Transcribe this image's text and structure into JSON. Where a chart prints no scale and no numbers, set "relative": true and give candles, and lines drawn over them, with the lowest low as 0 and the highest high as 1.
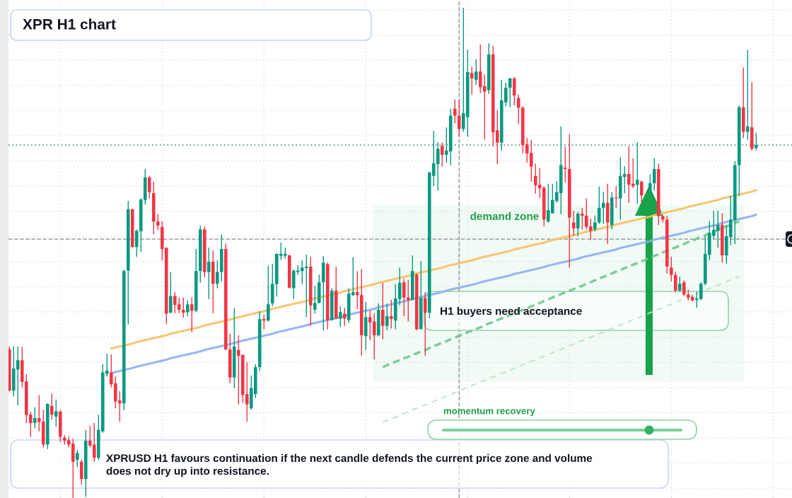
{
  "chart_data": {
    "type": "candlestick",
    "title": "XPR H1 chart",
    "relative": true,
    "grid": true,
    "categories": [
      null,
      null,
      null,
      null,
      null,
      null,
      null,
      null,
      null,
      null,
      null,
      null,
      null,
      null,
      null,
      null,
      null,
      null,
      null,
      null,
      null,
      null,
      null,
      null,
      null,
      null,
      null,
      null,
      null,
      null,
      null,
      null,
      null,
      null,
      null,
      null,
      null,
      null,
      null,
      null,
      null,
      null,
      null,
      null,
      null,
      null,
      null,
      null,
      null,
      null,
      null,
      null,
      null,
      null,
      null,
      null,
      null,
      null,
      null,
      null,
      null,
      null,
      null,
      null,
      null,
      null,
      null,
      null,
      null,
      null,
      null,
      null,
      null,
      null,
      null,
      null,
      null,
      null,
      null,
      null,
      null,
      null,
      null,
      null,
      null,
      null,
      null,
      null,
      null,
      null,
      null,
      null,
      null,
      null,
      null,
      null,
      null,
      null,
      null,
      null,
      null,
      null,
      null,
      null,
      null,
      null,
      null,
      null,
      null,
      null,
      null,
      null,
      null,
      null,
      null,
      null,
      null,
      null,
      null,
      null,
      null,
      null,
      null,
      null,
      null,
      null,
      null,
      null,
      null,
      null,
      null,
      null,
      null,
      null,
      null,
      null,
      null,
      null,
      null,
      null,
      null,
      null,
      null,
      null,
      null,
      null,
      null,
      null,
      null,
      null,
      null,
      null,
      null,
      null,
      null,
      null,
      null,
      null,
      null,
      null,
      null,
      null,
      null,
      null,
      null,
      null,
      null,
      null,
      null,
      null,
      null,
      null,
      null,
      null,
      null,
      null,
      null
    ],
    "ohlc": [
      [
        0.303,
        0.309,
        0.218,
        0.219
      ],
      [
        0.219,
        0.309,
        0.207,
        0.264
      ],
      [
        0.262,
        0.309,
        0.189,
        0.281
      ],
      [
        0.281,
        0.308,
        0.226,
        0.237
      ],
      [
        0.238,
        0.253,
        0.153,
        0.169
      ],
      [
        0.17,
        0.176,
        0.125,
        0.153
      ],
      [
        0.153,
        0.185,
        0.142,
        0.163
      ],
      [
        0.163,
        0.21,
        0.136,
        0.155
      ],
      [
        0.156,
        0.18,
        0.103,
        0.109
      ],
      [
        0.109,
        0.193,
        0.1,
        0.192
      ],
      [
        0.188,
        0.213,
        0.16,
        0.17
      ],
      [
        0.166,
        0.201,
        0.145,
        0.177
      ],
      [
        0.176,
        0.179,
        0.114,
        0.125
      ],
      [
        0.123,
        0.128,
        0.109,
        0.117
      ],
      [
        0.118,
        0.126,
        0.103,
        0.109
      ],
      [
        0.111,
        0.121,
        0.0,
        0.074
      ],
      [
        0.078,
        0.098,
        0.063,
        0.092
      ],
      [
        0.074,
        0.078,
        0.027,
        0.039
      ],
      [
        0.039,
        0.139,
        0.002,
        0.117
      ],
      [
        0.117,
        0.147,
        0.103,
        0.107
      ],
      [
        0.109,
        0.153,
        0.074,
        0.082
      ],
      [
        0.082,
        0.17,
        0.078,
        0.139
      ],
      [
        0.136,
        0.273,
        0.133,
        0.256
      ],
      [
        0.253,
        0.294,
        0.248,
        0.26
      ],
      [
        0.256,
        0.293,
        0.226,
        0.232
      ],
      [
        0.234,
        0.248,
        0.183,
        0.197
      ],
      [
        0.199,
        0.218,
        0.156,
        0.193
      ],
      [
        0.193,
        0.466,
        0.179,
        0.463
      ],
      [
        0.464,
        0.606,
        0.354,
        0.589
      ],
      [
        0.589,
        0.59,
        0.511,
        0.512
      ],
      [
        0.512,
        0.548,
        0.492,
        0.545
      ],
      [
        0.544,
        0.611,
        0.502,
        0.609
      ],
      [
        0.608,
        0.671,
        0.599,
        0.654
      ],
      [
        0.654,
        0.657,
        0.611,
        0.624
      ],
      [
        0.622,
        0.645,
        0.538,
        0.564
      ],
      [
        0.564,
        0.579,
        0.547,
        0.556
      ],
      [
        0.553,
        0.565,
        0.485,
        0.508
      ],
      [
        0.51,
        0.512,
        0.355,
        0.376
      ],
      [
        0.378,
        0.461,
        0.377,
        0.412
      ],
      [
        0.412,
        0.42,
        0.377,
        0.394
      ],
      [
        0.395,
        0.409,
        0.377,
        0.384
      ],
      [
        0.384,
        0.409,
        0.368,
        0.378
      ],
      [
        0.379,
        0.403,
        0.371,
        0.395
      ],
      [
        0.395,
        0.409,
        0.338,
        0.382
      ],
      [
        0.382,
        0.508,
        0.379,
        0.463
      ],
      [
        0.463,
        0.556,
        0.439,
        0.548
      ],
      [
        0.548,
        0.554,
        0.45,
        0.461
      ],
      [
        0.461,
        0.511,
        0.406,
        0.482
      ],
      [
        0.482,
        0.505,
        0.377,
        0.437
      ],
      [
        0.437,
        0.485,
        0.428,
        0.461
      ],
      [
        0.461,
        0.538,
        0.442,
        0.508
      ],
      [
        0.508,
        0.519,
        0.302,
        0.303
      ],
      [
        0.303,
        0.335,
        0.234,
        0.246
      ],
      [
        0.246,
        0.387,
        0.224,
        0.309
      ],
      [
        0.302,
        0.332,
        0.191,
        0.29
      ],
      [
        0.292,
        0.293,
        0.194,
        0.21
      ],
      [
        0.212,
        0.277,
        0.156,
        0.191
      ],
      [
        0.183,
        0.25,
        0.18,
        0.224
      ],
      [
        0.212,
        0.273,
        0.204,
        0.267
      ],
      [
        0.267,
        0.381,
        0.259,
        0.365
      ],
      [
        0.365,
        0.374,
        0.344,
        0.362
      ],
      [
        0.362,
        0.474,
        0.36,
        0.395
      ],
      [
        0.397,
        0.478,
        0.391,
        0.437
      ],
      [
        0.436,
        0.499,
        0.411,
        0.498
      ],
      [
        0.494,
        0.521,
        0.486,
        0.498
      ],
      [
        0.494,
        0.511,
        0.488,
        0.498
      ],
      [
        0.495,
        0.496,
        0.427,
        0.429
      ],
      [
        0.428,
        0.466,
        0.406,
        0.464
      ],
      [
        0.461,
        0.475,
        0.455,
        0.464
      ],
      [
        0.463,
        0.485,
        0.436,
        0.47
      ],
      [
        0.469,
        0.496,
        0.369,
        0.472
      ],
      [
        0.472,
        0.492,
        0.351,
        0.393
      ],
      [
        0.384,
        0.433,
        0.376,
        0.398
      ],
      [
        0.398,
        0.456,
        0.397,
        0.44
      ],
      [
        0.44,
        0.494,
        0.342,
        0.48
      ],
      [
        0.477,
        0.48,
        0.344,
        0.363
      ],
      [
        0.363,
        0.428,
        0.362,
        0.423
      ],
      [
        0.423,
        0.472,
        0.365,
        0.366
      ],
      [
        0.366,
        0.391,
        0.349,
        0.379
      ],
      [
        0.376,
        0.388,
        0.351,
        0.366
      ],
      [
        0.363,
        0.428,
        0.357,
        0.417
      ],
      [
        0.414,
        0.491,
        0.412,
        0.42
      ],
      [
        0.42,
        0.463,
        0.385,
        0.414
      ],
      [
        0.414,
        0.467,
        0.29,
        0.332
      ],
      [
        0.33,
        0.4,
        0.302,
        0.369
      ],
      [
        0.369,
        0.382,
        0.322,
        0.358
      ],
      [
        0.36,
        0.377,
        0.283,
        0.332
      ],
      [
        0.332,
        0.397,
        0.33,
        0.384
      ],
      [
        0.384,
        0.439,
        0.324,
        0.351
      ],
      [
        0.351,
        0.397,
        0.342,
        0.371
      ],
      [
        0.371,
        0.404,
        0.346,
        0.365
      ],
      [
        0.362,
        0.436,
        0.344,
        0.407
      ],
      [
        0.406,
        0.47,
        0.393,
        0.439
      ],
      [
        0.44,
        0.447,
        0.371,
        0.409
      ],
      [
        0.409,
        0.445,
        0.36,
        0.404
      ],
      [
        0.404,
        0.495,
        0.403,
        0.463
      ],
      [
        0.456,
        0.458,
        0.342,
        0.344
      ],
      [
        0.345,
        0.483,
        0.343,
        0.408
      ],
      [
        0.408,
        0.42,
        0.29,
        0.378
      ],
      [
        0.378,
        0.665,
        0.367,
        0.664
      ],
      [
        0.657,
        0.749,
        0.636,
        0.683
      ],
      [
        0.681,
        0.726,
        0.627,
        0.712
      ],
      [
        0.718,
        0.725,
        0.676,
        0.7
      ],
      [
        0.7,
        0.756,
        0.684,
        0.709
      ],
      [
        0.707,
        0.794,
        0.679,
        0.78
      ],
      [
        0.794,
        0.813,
        0.764,
        0.78
      ],
      [
        0.78,
        0.813,
        0.737,
        0.753
      ],
      [
        0.753,
        1.0,
        0.747,
        0.785
      ],
      [
        0.777,
        0.914,
        0.737,
        0.869
      ],
      [
        0.867,
        0.88,
        0.823,
        0.856
      ],
      [
        0.853,
        0.895,
        0.843,
        0.87
      ],
      [
        0.87,
        0.925,
        0.826,
        0.838
      ],
      [
        0.84,
        0.864,
        0.731,
        0.829
      ],
      [
        0.832,
        0.927,
        0.824,
        0.905
      ],
      [
        0.905,
        0.922,
        0.717,
        0.746
      ],
      [
        0.75,
        0.791,
        0.681,
        0.725
      ],
      [
        0.725,
        0.853,
        0.709,
        0.811
      ],
      [
        0.807,
        0.847,
        0.799,
        0.837
      ],
      [
        0.837,
        0.857,
        0.797,
        0.856
      ],
      [
        0.856,
        0.859,
        0.801,
        0.821
      ],
      [
        0.816,
        0.823,
        0.763,
        0.796
      ],
      [
        0.796,
        0.799,
        0.703,
        0.72
      ],
      [
        0.722,
        0.734,
        0.684,
        0.703
      ],
      [
        0.704,
        0.73,
        0.645,
        0.676
      ],
      [
        0.657,
        0.682,
        0.621,
        0.638
      ],
      [
        0.639,
        0.673,
        0.612,
        0.632
      ],
      [
        0.633,
        0.636,
        0.554,
        0.568
      ],
      [
        0.564,
        0.641,
        0.562,
        0.587
      ],
      [
        0.581,
        0.641,
        0.58,
        0.608
      ],
      [
        0.606,
        0.646,
        0.602,
        0.624
      ],
      [
        0.622,
        0.758,
        0.579,
        0.679
      ],
      [
        0.674,
        0.717,
        0.644,
        0.671
      ],
      [
        0.671,
        0.742,
        0.47,
        0.572
      ],
      [
        0.562,
        0.586,
        0.535,
        0.55
      ],
      [
        0.55,
        0.584,
        0.534,
        0.58
      ],
      [
        0.58,
        0.592,
        0.548,
        0.576
      ],
      [
        0.576,
        0.611,
        0.548,
        0.553
      ],
      [
        0.554,
        0.57,
        0.526,
        0.545
      ],
      [
        0.548,
        0.576,
        0.544,
        0.562
      ],
      [
        0.562,
        0.635,
        0.559,
        0.592
      ],
      [
        0.592,
        0.625,
        0.559,
        0.602
      ],
      [
        0.602,
        0.641,
        0.518,
        0.562
      ],
      [
        0.557,
        0.624,
        0.548,
        0.613
      ],
      [
        0.613,
        0.636,
        0.592,
        0.612
      ],
      [
        0.611,
        0.695,
        0.568,
        0.657
      ],
      [
        0.655,
        0.677,
        0.622,
        0.661
      ],
      [
        0.661,
        0.717,
        0.602,
        0.639
      ],
      [
        0.641,
        0.693,
        0.632,
        0.636
      ],
      [
        0.639,
        0.726,
        0.6,
        0.649
      ],
      [
        0.645,
        0.648,
        0.602,
        0.617
      ],
      null,
      [
        0.627,
        0.66,
        0.62,
        0.642
      ],
      [
        0.642,
        0.693,
        0.627,
        0.671
      ],
      [
        0.671,
        0.682,
        0.557,
        0.575
      ],
      [
        0.575,
        0.576,
        0.562,
        0.568
      ],
      [
        0.568,
        0.576,
        0.458,
        0.472
      ],
      [
        0.47,
        0.492,
        0.442,
        0.455
      ],
      [
        0.455,
        0.461,
        0.42,
        0.423
      ],
      [
        0.423,
        0.452,
        0.421,
        0.437
      ],
      [
        0.44,
        0.444,
        0.412,
        0.415
      ],
      [
        0.415,
        0.425,
        0.403,
        0.409
      ],
      [
        0.41,
        0.415,
        0.401,
        0.403
      ],
      [
        0.404,
        0.421,
        0.388,
        0.407
      ],
      [
        0.406,
        0.44,
        0.404,
        0.437
      ],
      [
        0.437,
        0.534,
        0.434,
        0.498
      ],
      [
        0.496,
        0.565,
        0.485,
        0.541
      ],
      [
        0.535,
        0.586,
        0.528,
        0.547
      ],
      [
        0.545,
        0.586,
        0.511,
        0.557
      ],
      [
        0.557,
        0.581,
        0.48,
        0.495
      ],
      [
        0.495,
        0.557,
        0.478,
        0.534
      ],
      [
        0.532,
        0.616,
        0.516,
        0.568
      ],
      [
        0.567,
        0.687,
        0.518,
        0.679
      ],
      [
        0.679,
        0.801,
        0.616,
        0.797
      ],
      [
        0.797,
        0.878,
        0.734,
        0.747
      ],
      [
        0.747,
        0.914,
        0.731,
        0.758
      ],
      [
        0.756,
        0.848,
        0.709,
        0.712
      ],
      [
        0.714,
        0.745,
        0.709,
        0.72
      ]
    ],
    "colors": [
      "#f23645",
      "#089981",
      "#089981",
      "#f23645",
      "#f23645",
      "#f23645",
      "#089981",
      "#f23645",
      "#f23645",
      "#089981",
      "#f23645",
      "#089981",
      "#f23645",
      "#f23645",
      "#f23645",
      "#f23645",
      "#089981",
      "#f23645",
      "#089981",
      "#f23645",
      "#f23645",
      "#089981",
      "#089981",
      "#089981",
      "#f23645",
      "#f23645",
      "#f23645",
      "#089981",
      "#089981",
      "#f23645",
      "#089981",
      "#089981",
      "#089981",
      "#f23645",
      "#f23645",
      "#f23645",
      "#f23645",
      "#f23645",
      "#089981",
      "#f23645",
      "#f23645",
      "#f23645",
      "#089981",
      "#f23645",
      "#089981",
      "#089981",
      "#f23645",
      "#089981",
      "#f23645",
      "#089981",
      "#089981",
      "#f23645",
      "#f23645",
      "#089981",
      "#f23645",
      "#f23645",
      "#f23645",
      "#089981",
      "#089981",
      "#089981",
      "#f23645",
      "#089981",
      "#089981",
      "#089981",
      "#089981",
      "#089981",
      "#f23645",
      "#089981",
      "#089981",
      "#089981",
      "#089981",
      "#f23645",
      "#089981",
      "#089981",
      "#089981",
      "#f23645",
      "#089981",
      "#f23645",
      "#089981",
      "#f23645",
      "#089981",
      "#089981",
      "#f23645",
      "#f23645",
      "#089981",
      "#f23645",
      "#f23645",
      "#089981",
      "#f23645",
      "#089981",
      "#f23645",
      "#089981",
      "#089981",
      "#f23645",
      "#f23645",
      "#089981",
      "#f23645",
      "#089981",
      "#f23645",
      "#089981",
      "#089981",
      "#089981",
      "#f23645",
      "#089981",
      "#089981",
      "#f23645",
      "#f23645",
      "#089981",
      "#089981",
      "#f23645",
      "#089981",
      "#f23645",
      "#f23645",
      "#089981",
      "#f23645",
      "#f23645",
      "#089981",
      "#089981",
      "#089981",
      "#f23645",
      "#f23645",
      "#f23645",
      "#f23645",
      "#f23645",
      "#f23645",
      "#f23645",
      "#f23645",
      "#089981",
      "#089981",
      "#089981",
      "#089981",
      "#f23645",
      "#f23645",
      "#f23645",
      "#089981",
      "#f23645",
      "#f23645",
      "#f23645",
      "#089981",
      "#089981",
      "#089981",
      "#f23645",
      "#089981",
      "#f23645",
      "#089981",
      "#089981",
      "#f23645",
      "#f23645",
      "#089981",
      "#f23645",
      null,
      "#089981",
      "#089981",
      "#f23645",
      "#f23645",
      "#f23645",
      "#f23645",
      "#f23645",
      "#089981",
      "#f23645",
      "#f23645",
      "#f23645",
      "#089981",
      "#089981",
      "#089981",
      "#089981",
      "#089981",
      "#089981",
      "#f23645",
      "#089981",
      "#089981",
      "#089981",
      "#089981",
      "#f23645",
      "#089981",
      "#f23645",
      "#089981"
    ],
    "series": [
      {
        "type": "line",
        "color": "#f6c064",
        "line_style": "solid",
        "values": [
          null,
          null,
          null,
          null,
          null,
          null,
          null,
          null,
          null,
          null,
          null,
          null,
          null,
          null,
          null,
          null,
          null,
          null,
          null,
          null,
          null,
          null,
          null,
          null,
          0.305,
          0.307,
          0.309,
          0.311,
          0.313,
          0.315,
          0.318,
          0.32,
          0.322,
          0.324,
          0.326,
          0.328,
          0.33,
          0.332,
          0.335,
          0.337,
          0.339,
          0.341,
          0.343,
          0.345,
          0.347,
          0.349,
          0.352,
          0.354,
          0.356,
          0.358,
          0.36,
          0.362,
          0.364,
          0.366,
          0.369,
          0.371,
          0.373,
          0.375,
          0.377,
          0.379,
          0.381,
          0.383,
          0.386,
          0.388,
          0.39,
          0.392,
          0.394,
          0.396,
          0.398,
          0.4,
          0.402,
          0.405,
          0.407,
          0.409,
          0.411,
          0.413,
          0.415,
          0.417,
          0.419,
          0.422,
          0.424,
          0.426,
          0.428,
          0.43,
          0.432,
          0.434,
          0.436,
          0.439,
          0.441,
          0.443,
          0.445,
          0.447,
          0.449,
          0.451,
          0.453,
          0.456,
          0.458,
          0.46,
          0.462,
          0.464,
          0.466,
          0.468,
          0.47,
          0.473,
          0.475,
          0.477,
          0.479,
          0.481,
          0.483,
          0.485,
          0.487,
          0.49,
          0.492,
          0.494,
          0.496,
          0.498,
          0.5,
          0.502,
          0.504,
          0.507,
          0.509,
          0.511,
          0.513,
          0.515,
          0.517,
          0.519,
          0.521,
          0.524,
          0.526,
          0.528,
          0.53,
          0.532,
          0.534,
          0.536,
          0.538,
          0.541,
          0.543,
          0.545,
          0.547,
          0.549,
          0.551,
          0.553,
          0.555,
          0.558,
          0.56,
          0.562,
          0.564,
          0.566,
          0.568,
          0.57,
          0.572,
          0.574,
          0.577,
          0.579,
          0.581,
          0.583,
          0.585,
          0.587,
          0.589,
          0.591,
          0.594,
          0.596,
          0.598,
          0.6,
          0.602,
          0.604,
          0.606,
          0.608,
          0.611,
          0.613,
          0.615,
          0.617,
          0.619,
          0.621,
          0.623,
          0.625,
          0.628
        ]
      },
      {
        "type": "line",
        "color": "#8caef2",
        "line_style": "solid",
        "values": [
          null,
          null,
          null,
          null,
          null,
          null,
          null,
          null,
          null,
          null,
          null,
          null,
          null,
          null,
          null,
          null,
          null,
          null,
          null,
          null,
          null,
          null,
          null,
          null,
          0.255,
          0.257,
          0.259,
          0.261,
          0.263,
          0.265,
          0.268,
          0.27,
          0.272,
          0.274,
          0.276,
          0.278,
          0.28,
          0.282,
          0.285,
          0.287,
          0.289,
          0.291,
          0.293,
          0.295,
          0.297,
          0.299,
          0.302,
          0.304,
          0.306,
          0.308,
          0.31,
          0.312,
          0.314,
          0.316,
          0.319,
          0.321,
          0.323,
          0.325,
          0.327,
          0.329,
          0.331,
          0.333,
          0.335,
          0.338,
          0.34,
          0.342,
          0.344,
          0.346,
          0.348,
          0.35,
          0.352,
          0.355,
          0.357,
          0.359,
          0.361,
          0.363,
          0.365,
          0.367,
          0.369,
          0.372,
          0.374,
          0.376,
          0.378,
          0.38,
          0.382,
          0.384,
          0.386,
          0.389,
          0.391,
          0.393,
          0.395,
          0.397,
          0.399,
          0.401,
          0.403,
          0.406,
          0.408,
          0.41,
          0.412,
          0.414,
          0.416,
          0.418,
          0.42,
          0.423,
          0.425,
          0.427,
          0.429,
          0.431,
          0.433,
          0.435,
          0.437,
          0.44,
          0.442,
          0.444,
          0.446,
          0.448,
          0.45,
          0.452,
          0.454,
          0.457,
          0.459,
          0.461,
          0.463,
          0.465,
          0.467,
          0.469,
          0.471,
          0.474,
          0.476,
          0.478,
          0.48,
          0.482,
          0.484,
          0.486,
          0.488,
          0.491,
          0.493,
          0.495,
          0.497,
          0.499,
          0.501,
          0.503,
          0.505,
          0.507,
          0.51,
          0.512,
          0.514,
          0.516,
          0.518,
          0.52,
          0.522,
          0.524,
          0.527,
          0.529,
          0.531,
          0.533,
          0.535,
          0.537,
          0.539,
          0.541,
          0.544,
          0.546,
          0.548,
          0.55,
          0.552,
          0.554,
          0.556,
          0.558,
          0.561,
          0.563,
          0.565,
          0.567,
          0.569,
          0.571,
          0.573,
          0.575,
          0.578
        ]
      },
      {
        "type": "line",
        "color": "#6cc88c",
        "line_style": "dashed",
        "values": [
          null,
          null,
          null,
          null,
          null,
          null,
          null,
          null,
          null,
          null,
          null,
          null,
          null,
          null,
          null,
          null,
          null,
          null,
          null,
          null,
          null,
          null,
          null,
          null,
          null,
          null,
          null,
          null,
          null,
          null,
          null,
          null,
          null,
          null,
          null,
          null,
          null,
          null,
          null,
          null,
          null,
          null,
          null,
          null,
          null,
          null,
          null,
          null,
          null,
          null,
          null,
          null,
          null,
          null,
          null,
          null,
          null,
          null,
          null,
          null,
          null,
          null,
          null,
          null,
          null,
          null,
          null,
          null,
          null,
          null,
          null,
          null,
          null,
          null,
          null,
          null,
          null,
          null,
          null,
          null,
          null,
          null,
          null,
          null,
          null,
          null,
          null,
          null,
          0.267,
          0.271,
          0.274,
          0.278,
          0.281,
          0.285,
          0.288,
          0.292,
          0.295,
          0.299,
          0.302,
          0.306,
          0.31,
          0.313,
          0.317,
          0.32,
          0.324,
          0.327,
          0.331,
          0.334,
          0.338,
          0.341,
          0.345,
          0.348,
          0.352,
          0.356,
          0.359,
          0.363,
          0.366,
          0.37,
          0.373,
          0.377,
          0.38,
          0.384,
          0.387,
          0.391,
          0.394,
          0.398,
          0.402,
          0.405,
          0.409,
          0.412,
          0.416,
          0.419,
          0.423,
          0.426,
          0.43,
          0.433,
          0.437,
          0.44,
          0.444,
          0.448,
          0.451,
          0.455,
          0.458,
          0.462,
          0.465,
          0.469,
          0.472,
          0.476,
          0.479,
          0.483,
          0.486,
          0.49,
          0.494,
          0.497,
          0.501,
          0.504,
          0.508,
          0.511,
          0.515,
          0.518,
          0.522,
          0.525,
          0.529,
          0.532,
          0.536,
          0.54,
          0.543,
          0.547,
          0.55,
          0.554,
          0.557,
          0.561,
          0.564,
          null,
          null,
          null,
          null
        ]
      },
      {
        "type": "line",
        "color": "#b6e4c4",
        "line_style": "dashed",
        "values": [
          null,
          null,
          null,
          null,
          null,
          null,
          null,
          null,
          null,
          null,
          null,
          null,
          null,
          null,
          null,
          null,
          null,
          null,
          null,
          null,
          null,
          null,
          null,
          null,
          null,
          null,
          null,
          null,
          null,
          null,
          null,
          null,
          null,
          null,
          null,
          null,
          null,
          null,
          null,
          null,
          null,
          null,
          null,
          null,
          null,
          null,
          null,
          null,
          null,
          null,
          null,
          null,
          null,
          null,
          null,
          null,
          null,
          null,
          null,
          null,
          null,
          null,
          null,
          null,
          null,
          null,
          null,
          null,
          null,
          null,
          null,
          null,
          null,
          null,
          null,
          null,
          null,
          null,
          null,
          null,
          null,
          null,
          null,
          null,
          null,
          null,
          null,
          null,
          0.155,
          0.158,
          0.162,
          0.165,
          0.169,
          0.172,
          0.176,
          0.18,
          0.183,
          0.187,
          0.19,
          0.194,
          0.197,
          0.201,
          0.204,
          0.208,
          0.211,
          0.215,
          0.218,
          0.222,
          0.226,
          0.229,
          0.233,
          0.236,
          0.24,
          0.243,
          0.247,
          0.25,
          0.254,
          0.257,
          0.261,
          0.264,
          0.268,
          0.272,
          0.275,
          0.279,
          0.282,
          0.286,
          0.289,
          0.293,
          0.296,
          0.3,
          0.303,
          0.307,
          0.31,
          0.314,
          0.318,
          0.321,
          0.325,
          0.328,
          0.332,
          0.335,
          0.339,
          0.342,
          0.346,
          0.349,
          0.353,
          0.356,
          0.36,
          0.364,
          0.367,
          0.371,
          0.374,
          0.378,
          0.381,
          0.385,
          0.388,
          0.392,
          0.395,
          0.399,
          0.403,
          0.406,
          0.41,
          0.413,
          0.417,
          0.42,
          0.424,
          0.427,
          0.431,
          0.434,
          0.438,
          0.441,
          0.445,
          0.449,
          0.452,
          null,
          null,
          null,
          null
        ]
      }
    ],
    "ref_lines": [
      {
        "axis": "y",
        "value": 0.72,
        "color": "#1f7a6c",
        "line_style": "dotted"
      },
      {
        "axis": "y",
        "value": 0.528,
        "color": "#9a9a9a",
        "line_style": "dashed"
      }
    ],
    "bands": [
      {
        "axis": "y",
        "from": 0.237,
        "to": 0.597,
        "label": "demand zone",
        "color": "#f1faf4"
      }
    ],
    "annotations": [
      "XPRUSD H1 favours continuation if the next candle defends the current price zone and volume\ndoes not dry up into resistance.",
      "H1 buyers need acceptance",
      "momentum recovery"
    ]
  }
}
